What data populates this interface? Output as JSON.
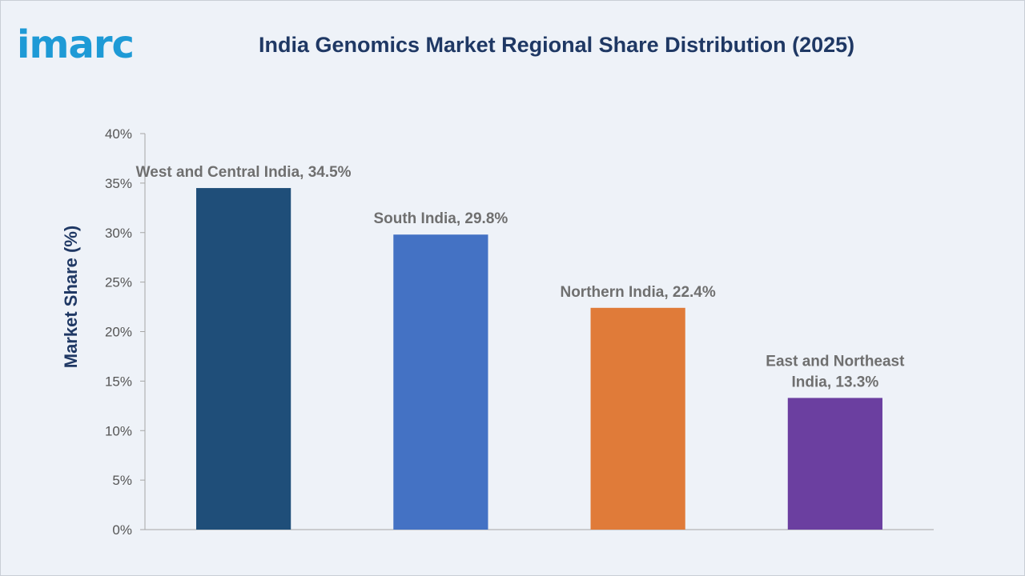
{
  "brand": {
    "logo_text": "imarc",
    "color": "#1e9ad6"
  },
  "chart_data": {
    "type": "bar",
    "title": "India Genomics Market Regional Share Distribution (2025)",
    "xlabel": "",
    "ylabel": "Market Share (%)",
    "ylim": [
      0,
      40
    ],
    "yticks": [
      0,
      5,
      10,
      15,
      20,
      25,
      30,
      35,
      40
    ],
    "ytick_labels": [
      "0%",
      "5%",
      "10%",
      "15%",
      "20%",
      "25%",
      "30%",
      "35%",
      "40%"
    ],
    "grid": false,
    "legend": false,
    "categories": [
      "West and Central India",
      "South India",
      "Northern India",
      "East and Northeast India"
    ],
    "values": [
      34.5,
      29.8,
      22.4,
      13.3
    ],
    "data_labels": [
      [
        "West and Central India, 34.5%"
      ],
      [
        "South India, 29.8%"
      ],
      [
        "Northern India, 22.4%"
      ],
      [
        "East and Northeast",
        "India, 13.3%"
      ]
    ],
    "colors": [
      "#1f4e79",
      "#4472c4",
      "#e07b39",
      "#6b3fa0"
    ]
  }
}
